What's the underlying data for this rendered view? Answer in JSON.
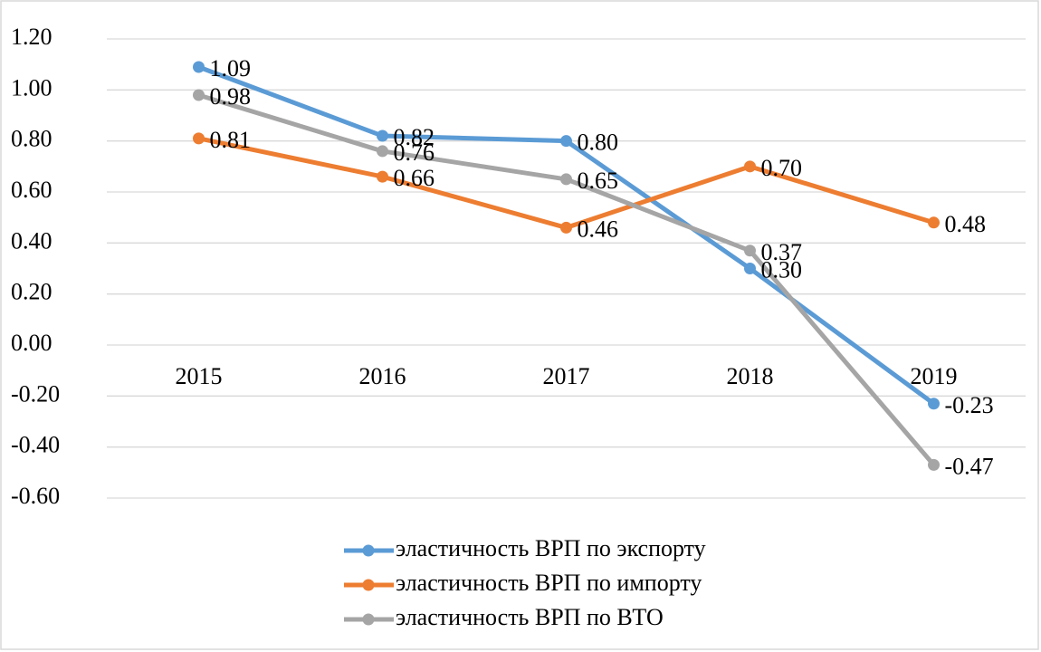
{
  "chart_data": {
    "type": "line",
    "categories": [
      "2015",
      "2016",
      "2017",
      "2018",
      "2019"
    ],
    "series": [
      {
        "name": "эластичность ВРП по экспорту",
        "color": "#5b9bd5",
        "values": [
          1.09,
          0.82,
          0.8,
          0.3,
          -0.23
        ],
        "value_labels": [
          "1.09",
          "0.82",
          "0.80",
          "0.30",
          "-0.23"
        ]
      },
      {
        "name": "эластичность ВРП по импорту",
        "color": "#ed7d31",
        "values": [
          0.81,
          0.66,
          0.46,
          0.7,
          0.48
        ],
        "value_labels": [
          "0.81",
          "0.66",
          "0.46",
          "0.70",
          "0.48"
        ]
      },
      {
        "name": "эластичность ВРП по ВТО",
        "color": "#a5a5a5",
        "values": [
          0.98,
          0.76,
          0.65,
          0.37,
          -0.47
        ],
        "value_labels": [
          "0.98",
          "0.76",
          "0.65",
          "0.37",
          "-0.47"
        ]
      }
    ],
    "ylim": [
      -0.6,
      1.2
    ],
    "yticks": [
      {
        "value": 1.2,
        "label": "1.20"
      },
      {
        "value": 1.0,
        "label": "1.00"
      },
      {
        "value": 0.8,
        "label": "0.80"
      },
      {
        "value": 0.6,
        "label": "0.60"
      },
      {
        "value": 0.4,
        "label": "0.40"
      },
      {
        "value": 0.2,
        "label": "0.20"
      },
      {
        "value": 0,
        "label": "0.00"
      },
      {
        "value": -0.2,
        "label": "-0.20"
      },
      {
        "value": -0.4,
        "label": "-0.40"
      },
      {
        "value": -0.6,
        "label": "-0.60"
      }
    ],
    "grid": true,
    "legend": "bottom"
  }
}
